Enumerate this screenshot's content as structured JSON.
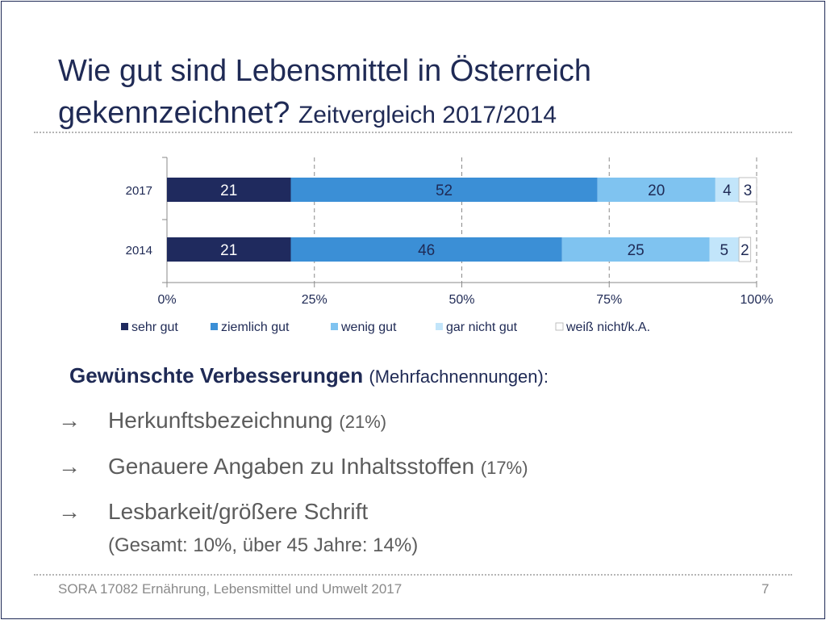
{
  "slide": {
    "title_main": "Wie gut sind Lebensmittel in Österreich gekennzeichnet?",
    "title_sub": "Zeitvergleich 2017/2014"
  },
  "colors": {
    "sehr_gut": "#1f2a5e",
    "ziemlich_gut": "#3b8fd6",
    "wenig_gut": "#7fc3f0",
    "gar_nicht_gut": "#c2e5fa",
    "weiss_nicht": "#ffffff",
    "title": "#1f2a55",
    "body_text": "#5c5c5c"
  },
  "chart_data": {
    "type": "bar",
    "orientation": "horizontal",
    "stacked": true,
    "percent": true,
    "categories": [
      "2017",
      "2014"
    ],
    "series": [
      {
        "name": "sehr gut",
        "values": [
          21,
          21
        ],
        "color": "#1f2a5e",
        "label_color": "#ffffff"
      },
      {
        "name": "ziemlich gut",
        "values": [
          52,
          46
        ],
        "color": "#3b8fd6",
        "label_color": "#1f2a55"
      },
      {
        "name": "wenig gut",
        "values": [
          20,
          25
        ],
        "color": "#7fc3f0",
        "label_color": "#1f2a55"
      },
      {
        "name": "gar nicht gut",
        "values": [
          4,
          5
        ],
        "color": "#c2e5fa",
        "label_color": "#1f2a55"
      },
      {
        "name": "weiß nicht/k.A.",
        "values": [
          3,
          2
        ],
        "color": "#ffffff",
        "label_color": "#1f2a55"
      }
    ],
    "xticks": [
      "0%",
      "25%",
      "50%",
      "75%",
      "100%"
    ],
    "xlim": [
      0,
      100
    ],
    "grid": "vertical dashed",
    "legend": "bottom"
  },
  "improvements": {
    "heading": "Gewünschte Verbesserungen",
    "heading_note": "(Mehrfachnennungen):",
    "items": [
      {
        "arrow": "→",
        "text": "Herkunftsbezeichnung",
        "pct": "(21%)"
      },
      {
        "arrow": "→",
        "text": "Genauere Angaben zu Inhaltsstoffen",
        "pct": "(17%)"
      },
      {
        "arrow": "→",
        "text": "Lesbarkeit/größere Schrift",
        "pct": "",
        "sub": "(Gesamt: 10%, über 45 Jahre: 14%)"
      }
    ]
  },
  "footer": {
    "text": "SORA 17082 Ernährung, Lebensmittel und Umwelt 2017",
    "page": "7"
  }
}
